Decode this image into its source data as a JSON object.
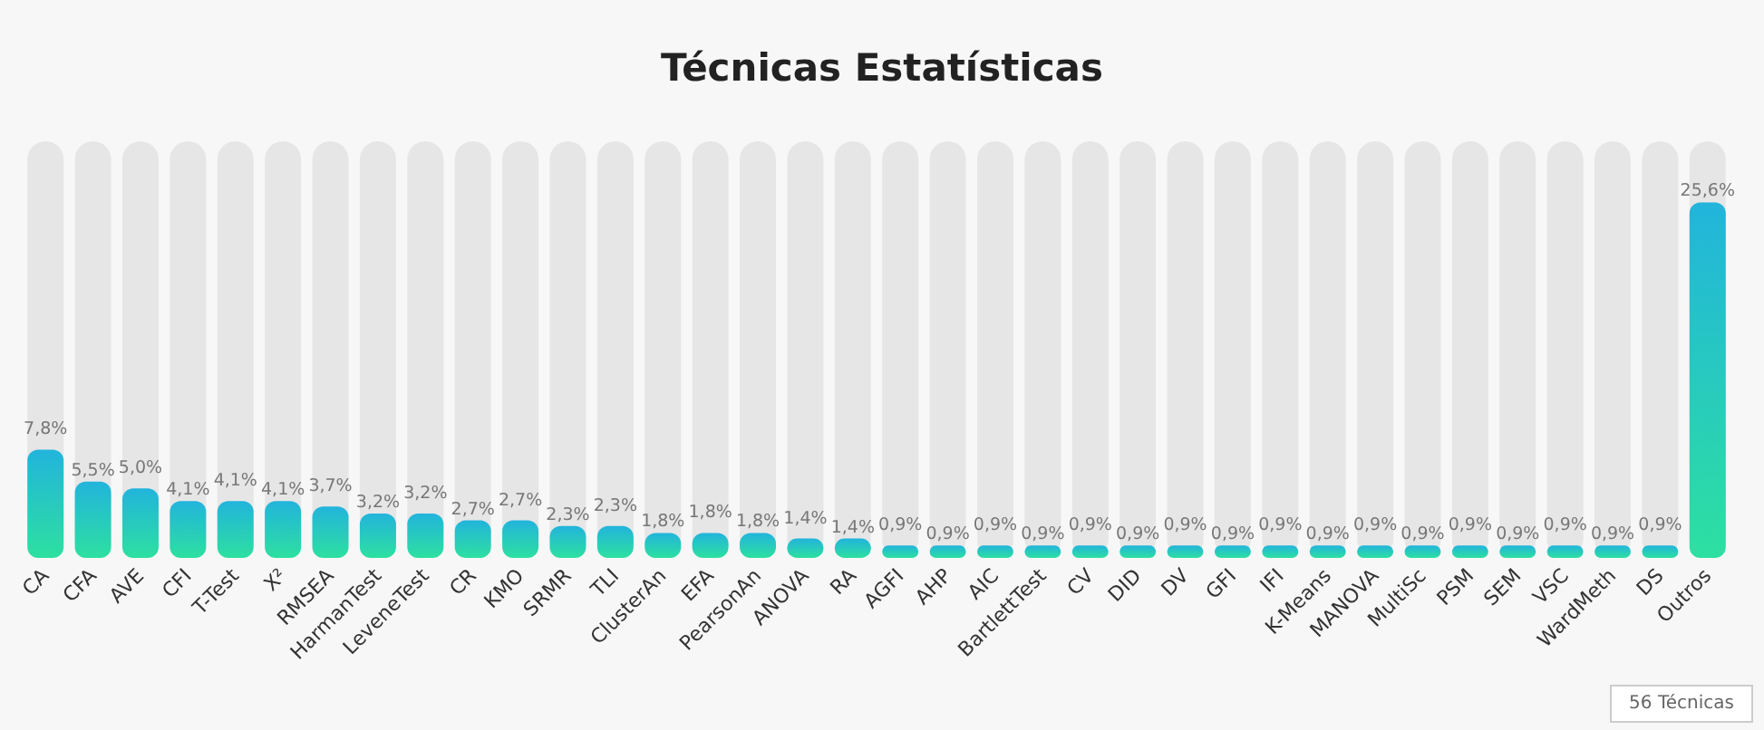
{
  "chart_data": {
    "type": "bar",
    "title": "Técnicas Estatísticas",
    "categories": [
      "CA",
      "CFA",
      "AVE",
      "CFI",
      "T-Test",
      "X²",
      "RMSEA",
      "HarmanTest",
      "LeveneTest",
      "CR",
      "KMO",
      "SRMR",
      "TLI",
      "ClusterAn",
      "EFA",
      "PearsonAn",
      "ANOVA",
      "RA",
      "AGFI",
      "AHP",
      "AIC",
      "BartlettTest",
      "CV",
      "DID",
      "DV",
      "GFI",
      "IFI",
      "K-Means",
      "MANOVA",
      "MultiSc",
      "PSM",
      "SEM",
      "VSC",
      "WardMeth",
      "DS",
      "Outros"
    ],
    "values": [
      7.8,
      5.5,
      5.0,
      4.1,
      4.1,
      4.1,
      3.7,
      3.2,
      3.2,
      2.7,
      2.7,
      2.3,
      2.3,
      1.8,
      1.8,
      1.8,
      1.4,
      1.4,
      0.9,
      0.9,
      0.9,
      0.9,
      0.9,
      0.9,
      0.9,
      0.9,
      0.9,
      0.9,
      0.9,
      0.9,
      0.9,
      0.9,
      0.9,
      0.9,
      0.9,
      25.6
    ],
    "value_labels": [
      "7,8%",
      "5,5%",
      "5,0%",
      "4,1%",
      "4,1%",
      "4,1%",
      "3,7%",
      "3,2%",
      "3,2%",
      "2,7%",
      "2,7%",
      "2,3%",
      "2,3%",
      "1,8%",
      "1,8%",
      "1,8%",
      "1,4%",
      "1,4%",
      "0,9%",
      "0,9%",
      "0,9%",
      "0,9%",
      "0,9%",
      "0,9%",
      "0,9%",
      "0,9%",
      "0,9%",
      "0,9%",
      "0,9%",
      "0,9%",
      "0,9%",
      "0,9%",
      "0,9%",
      "0,9%",
      "0,9%",
      "25,6%"
    ],
    "color": "#22b4dc",
    "annotations": [
      "56 Técnicas"
    ],
    "grid": false
  }
}
